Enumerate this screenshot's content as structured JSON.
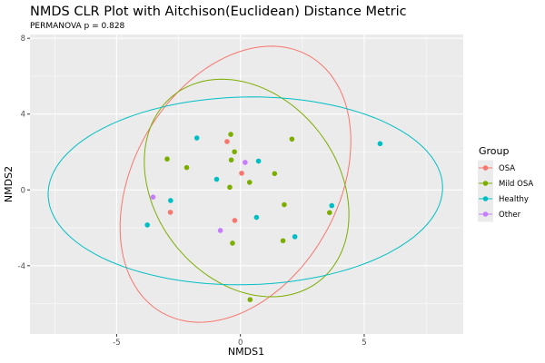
{
  "chart_data": {
    "type": "scatter",
    "title": "NMDS CLR Plot with Aitchison(Euclidean) Distance Metric",
    "subtitle": "PERMANOVA p = 0.828",
    "xlabel": "NMDS1",
    "ylabel": "NMDS2",
    "xlim": [
      -8.5,
      9.0
    ],
    "ylim": [
      -7.6,
      8.2
    ],
    "xticks": [
      -5,
      0,
      5
    ],
    "yticks": [
      -4,
      0,
      4,
      8
    ],
    "grid": true,
    "legend": {
      "title": "Group",
      "placement": "right"
    },
    "series": [
      {
        "name": "OSA",
        "color": "#F8766D",
        "points": [
          [
            -0.54,
            2.55
          ],
          [
            0.05,
            0.88
          ],
          [
            -2.83,
            -1.18
          ],
          [
            -0.23,
            -1.61
          ]
        ],
        "ellipse": {
          "center": [
            -0.2,
            0.3
          ],
          "semi_major": 7.5,
          "semi_minor": 4.3,
          "angle_deg": 73
        }
      },
      {
        "name": "Mild OSA",
        "color": "#7CAE00",
        "points": [
          [
            -0.39,
            2.93
          ],
          [
            2.08,
            2.68
          ],
          [
            -0.24,
            2.01
          ],
          [
            -2.96,
            1.63
          ],
          [
            -0.37,
            1.58
          ],
          [
            -2.17,
            1.18
          ],
          [
            1.38,
            0.86
          ],
          [
            0.37,
            0.4
          ],
          [
            -0.43,
            0.14
          ],
          [
            1.77,
            -0.78
          ],
          [
            3.6,
            -1.2
          ],
          [
            -0.32,
            -2.81
          ],
          [
            1.72,
            -2.68
          ],
          [
            0.39,
            -5.79
          ]
        ],
        "ellipse": {
          "center": [
            0.25,
            0.1
          ],
          "semi_major": 5.9,
          "semi_minor": 3.9,
          "angle_deg": -72
        }
      },
      {
        "name": "Healthy",
        "color": "#00BFC4",
        "points": [
          [
            -1.76,
            2.74
          ],
          [
            0.73,
            1.52
          ],
          [
            -0.96,
            0.56
          ],
          [
            -2.82,
            -0.56
          ],
          [
            3.69,
            -0.83
          ],
          [
            -3.76,
            -1.85
          ],
          [
            0.65,
            -1.45
          ],
          [
            2.2,
            -2.47
          ],
          [
            5.64,
            2.44
          ]
        ],
        "ellipse": {
          "center": [
            0.2,
            -0.05
          ],
          "semi_major": 7.97,
          "semi_minor": 4.95,
          "angle_deg": 2
        }
      },
      {
        "name": "Other",
        "color": "#C77CFF",
        "points": [
          [
            0.19,
            1.45
          ],
          [
            -3.53,
            -0.38
          ],
          [
            -0.81,
            -2.14
          ]
        ]
      }
    ]
  }
}
